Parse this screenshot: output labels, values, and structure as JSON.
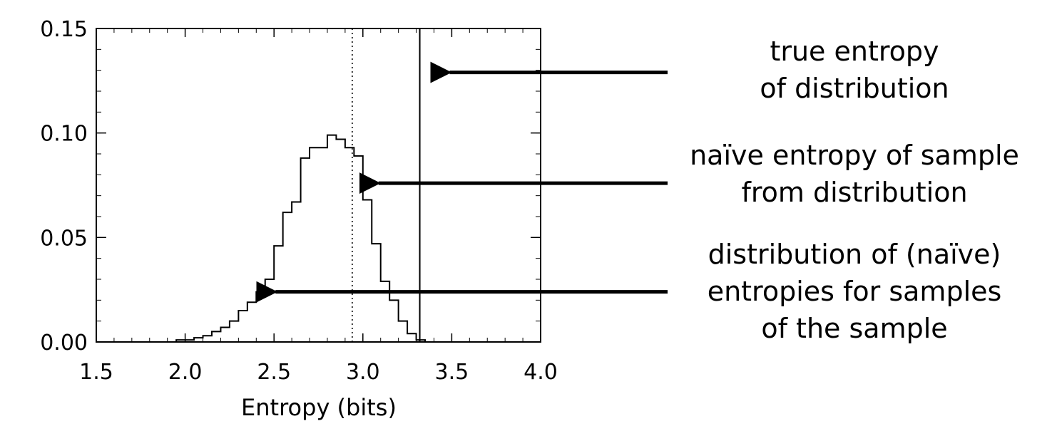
{
  "chart_data": {
    "type": "bar",
    "subtype": "step-histogram",
    "xlabel": "Entropy (bits)",
    "ylabel": "",
    "xlim": [
      1.5,
      4.0
    ],
    "ylim": [
      0.0,
      0.15
    ],
    "xticks": [
      "1.5",
      "2.0",
      "2.5",
      "3.0",
      "3.5",
      "4.0"
    ],
    "yticks": [
      "0.00",
      "0.05",
      "0.10",
      "0.15"
    ],
    "grid": false,
    "bin_width": 0.05,
    "bins": [
      {
        "x0": 1.7,
        "y": 0.0
      },
      {
        "x0": 1.75,
        "y": 0.0
      },
      {
        "x0": 1.8,
        "y": 0.0
      },
      {
        "x0": 1.85,
        "y": 0.0
      },
      {
        "x0": 1.9,
        "y": 0.0
      },
      {
        "x0": 1.95,
        "y": 0.001
      },
      {
        "x0": 2.0,
        "y": 0.001
      },
      {
        "x0": 2.05,
        "y": 0.002
      },
      {
        "x0": 2.1,
        "y": 0.003
      },
      {
        "x0": 2.15,
        "y": 0.005
      },
      {
        "x0": 2.2,
        "y": 0.007
      },
      {
        "x0": 2.25,
        "y": 0.01
      },
      {
        "x0": 2.3,
        "y": 0.015
      },
      {
        "x0": 2.35,
        "y": 0.019
      },
      {
        "x0": 2.4,
        "y": 0.024
      },
      {
        "x0": 2.45,
        "y": 0.03
      },
      {
        "x0": 2.5,
        "y": 0.046
      },
      {
        "x0": 2.55,
        "y": 0.062
      },
      {
        "x0": 2.6,
        "y": 0.067
      },
      {
        "x0": 2.65,
        "y": 0.088
      },
      {
        "x0": 2.7,
        "y": 0.093
      },
      {
        "x0": 2.75,
        "y": 0.093
      },
      {
        "x0": 2.8,
        "y": 0.099
      },
      {
        "x0": 2.85,
        "y": 0.097
      },
      {
        "x0": 2.9,
        "y": 0.093
      },
      {
        "x0": 2.95,
        "y": 0.089
      },
      {
        "x0": 3.0,
        "y": 0.068
      },
      {
        "x0": 3.05,
        "y": 0.047
      },
      {
        "x0": 3.1,
        "y": 0.029
      },
      {
        "x0": 3.15,
        "y": 0.02
      },
      {
        "x0": 3.2,
        "y": 0.01
      },
      {
        "x0": 3.25,
        "y": 0.004
      },
      {
        "x0": 3.3,
        "y": 0.001
      },
      {
        "x0": 3.35,
        "y": 0.0
      }
    ],
    "reference_lines": [
      {
        "name": "true entropy of distribution",
        "x": 3.32,
        "style": "solid"
      },
      {
        "name": "naïve entropy of sample from distribution",
        "x": 2.94,
        "style": "dotted"
      }
    ]
  },
  "annotations": [
    {
      "lines": [
        "true entropy",
        "of distribution"
      ],
      "arrow_tip": {
        "x": 3.4,
        "y": 0.129
      }
    },
    {
      "lines": [
        "naïve entropy of sample",
        "from distribution"
      ],
      "arrow_tip": {
        "x": 3.0,
        "y": 0.076
      }
    },
    {
      "lines": [
        "distribution of (naïve)",
        "entropies for samples",
        "of the sample"
      ],
      "arrow_tip": {
        "x": 2.42,
        "y": 0.024
      }
    }
  ]
}
